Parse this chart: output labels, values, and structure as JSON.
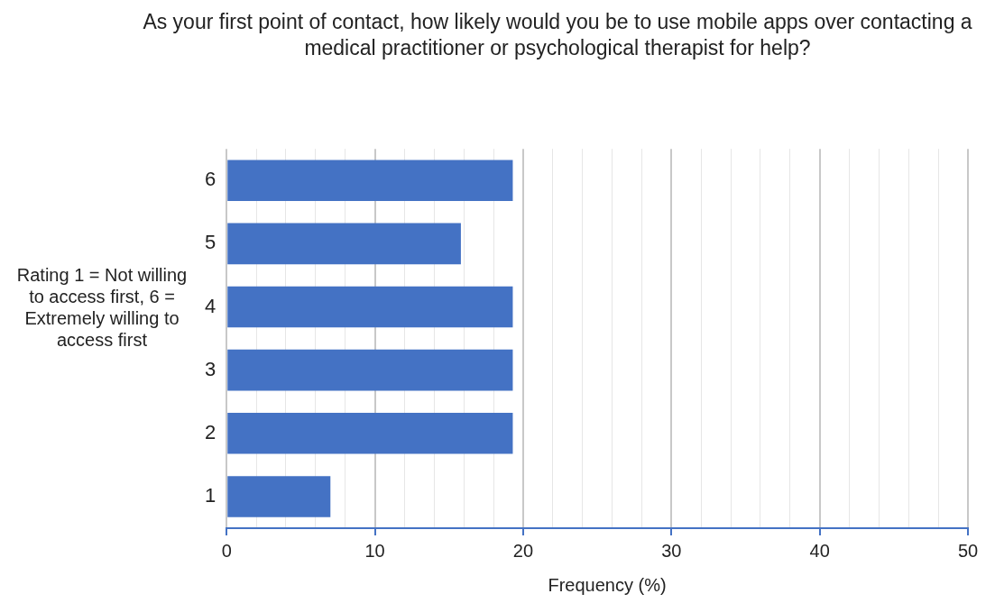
{
  "chart_data": {
    "type": "bar",
    "orientation": "horizontal",
    "title": "As your first point of contact, how likely would  you be to use mobile apps over contacting a medical practitioner or psychological therapist for help?",
    "ylabel": "Rating 1 = Not willing to access first, 6 = Extremely willing to access first",
    "xlabel": "Frequency (%)",
    "categories": [
      "6",
      "5",
      "4",
      "3",
      "2",
      "1"
    ],
    "values": [
      19.3,
      15.8,
      19.3,
      19.3,
      19.3,
      7.0
    ],
    "color": "#4472c4",
    "xlim": [
      0,
      50
    ],
    "xticks": [
      0,
      {
        "value": 2,
        "label": null
      },
      {
        "value": 4,
        "label": null
      },
      {
        "value": 6,
        "label": null
      },
      {
        "value": 8,
        "label": null
      },
      10,
      {
        "value": 12,
        "label": null
      },
      {
        "value": 14,
        "label": null
      },
      {
        "value": 16,
        "label": null
      },
      {
        "value": 18,
        "label": null
      },
      20,
      {
        "value": 22,
        "label": null
      },
      {
        "value": 24,
        "label": null
      },
      {
        "value": 26,
        "label": null
      },
      {
        "value": 28,
        "label": null
      },
      30,
      {
        "value": 32,
        "label": null
      },
      {
        "value": 34,
        "label": null
      },
      {
        "value": 36,
        "label": null
      },
      {
        "value": 38,
        "label": null
      },
      40,
      {
        "value": 42,
        "label": null
      },
      {
        "value": 44,
        "label": null
      },
      {
        "value": 46,
        "label": null
      },
      {
        "value": 48,
        "label": null
      },
      50
    ],
    "grid": "x",
    "legend": false
  }
}
